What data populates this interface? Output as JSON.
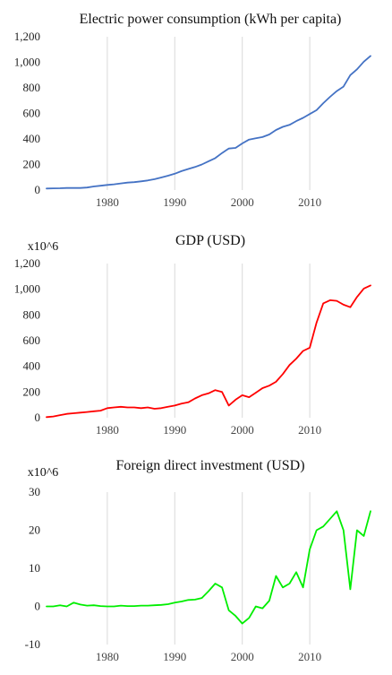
{
  "chart_data": [
    {
      "type": "line",
      "title": "Electric power consumption (kWh per capita)",
      "unit_label": "",
      "color": "#4472c4",
      "xlim": [
        1971,
        2019
      ],
      "ylim": [
        0,
        1200
      ],
      "y_ticks": [
        0,
        200,
        400,
        600,
        800,
        1000,
        1200
      ],
      "y_tick_labels": [
        "0",
        "200",
        "400",
        "600",
        "800",
        "1,000",
        "1,200"
      ],
      "x_ticks": [
        1980,
        1990,
        2000,
        2010
      ],
      "x_tick_labels": [
        "1980",
        "1990",
        "2000",
        "2010"
      ],
      "grid": "vertical",
      "series": [
        {
          "x": [
            1971,
            1972,
            1973,
            1974,
            1975,
            1976,
            1977,
            1978,
            1979,
            1980,
            1981,
            1982,
            1983,
            1984,
            1985,
            1986,
            1987,
            1988,
            1989,
            1990,
            1991,
            1992,
            1993,
            1994,
            1995,
            1996,
            1997,
            1998,
            1999,
            2000,
            2001,
            2002,
            2003,
            2004,
            2005,
            2006,
            2007,
            2008,
            2009,
            2010,
            2011,
            2012,
            2013,
            2014,
            2015,
            2016,
            2017,
            2018,
            2019
          ],
          "values": [
            12,
            13,
            14,
            16,
            17,
            16,
            20,
            28,
            34,
            40,
            45,
            52,
            58,
            62,
            68,
            75,
            85,
            98,
            112,
            128,
            148,
            165,
            180,
            200,
            225,
            250,
            290,
            325,
            330,
            365,
            395,
            405,
            415,
            435,
            470,
            495,
            510,
            540,
            565,
            595,
            625,
            680,
            730,
            775,
            810,
            900,
            945,
            1005,
            1050
          ]
        }
      ]
    },
    {
      "type": "line",
      "title": "GDP (USD)",
      "unit_label": "x10^6",
      "color": "#ff0000",
      "xlim": [
        1971,
        2019
      ],
      "ylim": [
        0,
        1200
      ],
      "y_ticks": [
        0,
        200,
        400,
        600,
        800,
        1000,
        1200
      ],
      "y_tick_labels": [
        "0",
        "200",
        "400",
        "600",
        "800",
        "1,000",
        "1,200"
      ],
      "x_ticks": [
        1980,
        1990,
        2000,
        2010
      ],
      "x_tick_labels": [
        "1980",
        "1990",
        "2000",
        "2010"
      ],
      "grid": "vertical",
      "series": [
        {
          "x": [
            1971,
            1972,
            1973,
            1974,
            1975,
            1976,
            1977,
            1978,
            1979,
            1980,
            1981,
            1982,
            1983,
            1984,
            1985,
            1986,
            1987,
            1988,
            1989,
            1990,
            1991,
            1992,
            1993,
            1994,
            1995,
            1996,
            1997,
            1998,
            1999,
            2000,
            2001,
            2002,
            2003,
            2004,
            2005,
            2006,
            2007,
            2008,
            2009,
            2010,
            2011,
            2012,
            2013,
            2014,
            2015,
            2016,
            2017,
            2018,
            2019
          ],
          "values": [
            5,
            10,
            20,
            30,
            35,
            40,
            45,
            50,
            55,
            75,
            80,
            85,
            80,
            80,
            75,
            80,
            70,
            75,
            85,
            95,
            110,
            120,
            150,
            175,
            190,
            215,
            200,
            95,
            140,
            175,
            160,
            195,
            230,
            250,
            280,
            340,
            410,
            460,
            520,
            545,
            740,
            890,
            915,
            910,
            880,
            860,
            940,
            1005,
            1030
          ]
        }
      ]
    },
    {
      "type": "line",
      "title": "Foreign direct investment (USD)",
      "unit_label": "x10^6",
      "color": "#00ee00",
      "xlim": [
        1971,
        2019
      ],
      "ylim": [
        -10,
        30
      ],
      "y_ticks": [
        -10,
        0,
        10,
        20,
        30
      ],
      "y_tick_labels": [
        "-10",
        "0",
        "10",
        "20",
        "30"
      ],
      "x_ticks": [
        1980,
        1990,
        2000,
        2010
      ],
      "x_tick_labels": [
        "1980",
        "1990",
        "2000",
        "2010"
      ],
      "grid": "vertical",
      "series": [
        {
          "x": [
            1971,
            1972,
            1973,
            1974,
            1975,
            1976,
            1977,
            1978,
            1979,
            1980,
            1981,
            1982,
            1983,
            1984,
            1985,
            1986,
            1987,
            1988,
            1989,
            1990,
            1991,
            1992,
            1993,
            1994,
            1995,
            1996,
            1997,
            1998,
            1999,
            2000,
            2001,
            2002,
            2003,
            2004,
            2005,
            2006,
            2007,
            2008,
            2009,
            2010,
            2011,
            2012,
            2013,
            2014,
            2015,
            2016,
            2017,
            2018,
            2019
          ],
          "values": [
            0,
            0,
            0.3,
            0,
            1,
            0.5,
            0.2,
            0.3,
            0.1,
            0,
            0,
            0.2,
            0.1,
            0.1,
            0.2,
            0.2,
            0.3,
            0.4,
            0.6,
            1,
            1.3,
            1.7,
            1.8,
            2.2,
            4,
            6,
            5,
            -1,
            -2.5,
            -4.5,
            -3,
            0,
            -0.5,
            1.5,
            8,
            5,
            6,
            9,
            5,
            15,
            20,
            21,
            23,
            25,
            20,
            4.5,
            20,
            18.5,
            25
          ]
        }
      ]
    }
  ]
}
